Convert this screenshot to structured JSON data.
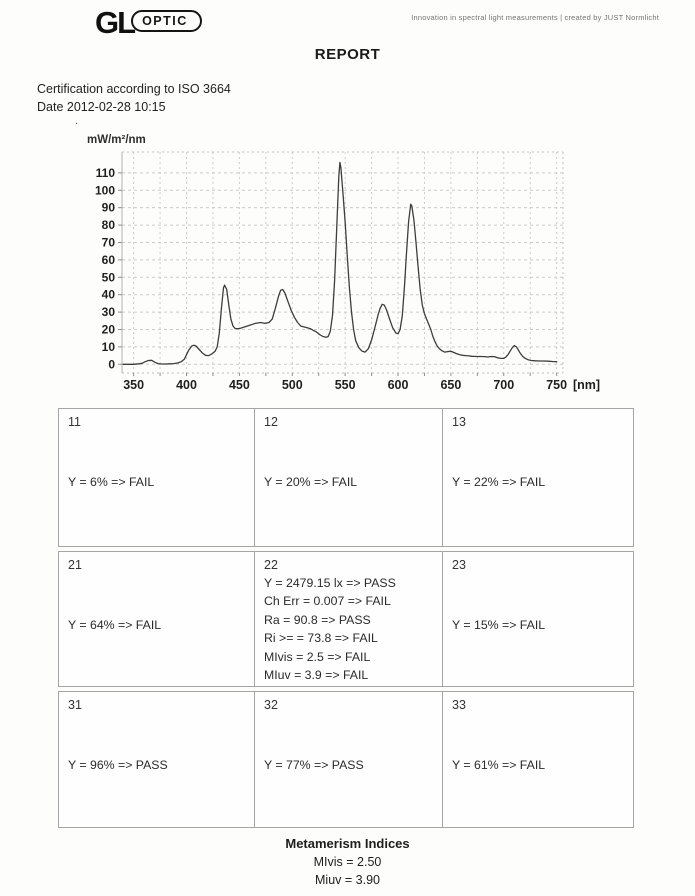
{
  "header": {
    "logo_gl": "GL",
    "logo_optic": "OPTIC",
    "tagline": "Innovation in spectral light measurements  |  created by JUST Normlicht",
    "title": "REPORT"
  },
  "certification": {
    "line1": "Certification according to ISO 3664",
    "line2": "Date 2012-02-28 10:15"
  },
  "stray_mark": ".",
  "chart_data": {
    "type": "line",
    "title": "",
    "ylabel": "mW/m²/nm",
    "x_unit_label": "[nm]",
    "xlabel": "",
    "x_ticks": [
      350,
      400,
      450,
      500,
      550,
      600,
      650,
      700,
      750
    ],
    "y_ticks": [
      0,
      10,
      20,
      30,
      40,
      50,
      60,
      70,
      80,
      90,
      100,
      110
    ],
    "xlim": [
      339,
      756
    ],
    "ylim": [
      -5,
      122
    ],
    "grid": true,
    "grid_color": "#cccccc",
    "line_color": "#3d3d3d",
    "points": [
      [
        340,
        0
      ],
      [
        345,
        0
      ],
      [
        350,
        0
      ],
      [
        355,
        0.3
      ],
      [
        358,
        0.6
      ],
      [
        361,
        1.5
      ],
      [
        364,
        2.2
      ],
      [
        367,
        2.3
      ],
      [
        370,
        1.2
      ],
      [
        373,
        0.4
      ],
      [
        376,
        0.2
      ],
      [
        380,
        0.2
      ],
      [
        384,
        0.3
      ],
      [
        388,
        0.4
      ],
      [
        392,
        0.8
      ],
      [
        395,
        1.5
      ],
      [
        398,
        3
      ],
      [
        400,
        5.5
      ],
      [
        402,
        8
      ],
      [
        405,
        10.5
      ],
      [
        407,
        11
      ],
      [
        409,
        10.5
      ],
      [
        412,
        8.5
      ],
      [
        415,
        6.5
      ],
      [
        418,
        5.2
      ],
      [
        421,
        5
      ],
      [
        424,
        6
      ],
      [
        427,
        7.5
      ],
      [
        429,
        10
      ],
      [
        431,
        18
      ],
      [
        433,
        32
      ],
      [
        435,
        44
      ],
      [
        436,
        45.5
      ],
      [
        438,
        43
      ],
      [
        440,
        34
      ],
      [
        442,
        26
      ],
      [
        444,
        22
      ],
      [
        446,
        20.5
      ],
      [
        450,
        20.5
      ],
      [
        455,
        21.5
      ],
      [
        460,
        22.5
      ],
      [
        465,
        23.5
      ],
      [
        470,
        24
      ],
      [
        474,
        23.5
      ],
      [
        478,
        24
      ],
      [
        481,
        26
      ],
      [
        484,
        32
      ],
      [
        487,
        39
      ],
      [
        489,
        42.5
      ],
      [
        491,
        43
      ],
      [
        493,
        41
      ],
      [
        496,
        36
      ],
      [
        499,
        31
      ],
      [
        502,
        27
      ],
      [
        505,
        24
      ],
      [
        508,
        22
      ],
      [
        511,
        21.5
      ],
      [
        514,
        21
      ],
      [
        517,
        20.5
      ],
      [
        520,
        19.5
      ],
      [
        523,
        18.5
      ],
      [
        526,
        17
      ],
      [
        529,
        16
      ],
      [
        532,
        15.5
      ],
      [
        534,
        16
      ],
      [
        536,
        19
      ],
      [
        538,
        28
      ],
      [
        540,
        48
      ],
      [
        542,
        78
      ],
      [
        544,
        108
      ],
      [
        545,
        116
      ],
      [
        546,
        113
      ],
      [
        548,
        98
      ],
      [
        550,
        82
      ],
      [
        552,
        62
      ],
      [
        554,
        44
      ],
      [
        556,
        30
      ],
      [
        558,
        20
      ],
      [
        560,
        13.5
      ],
      [
        563,
        9.5
      ],
      [
        566,
        7.5
      ],
      [
        569,
        7
      ],
      [
        572,
        9
      ],
      [
        575,
        14
      ],
      [
        578,
        21
      ],
      [
        581,
        28
      ],
      [
        583,
        32
      ],
      [
        585,
        34.5
      ],
      [
        587,
        34
      ],
      [
        589,
        31.5
      ],
      [
        592,
        26
      ],
      [
        595,
        21
      ],
      [
        598,
        18
      ],
      [
        600,
        17.5
      ],
      [
        602,
        20
      ],
      [
        604,
        28
      ],
      [
        606,
        44
      ],
      [
        608,
        64
      ],
      [
        610,
        82
      ],
      [
        612,
        92
      ],
      [
        613,
        91
      ],
      [
        615,
        83
      ],
      [
        617,
        70
      ],
      [
        619,
        56
      ],
      [
        621,
        43
      ],
      [
        623,
        34
      ],
      [
        625,
        29
      ],
      [
        627,
        26
      ],
      [
        629,
        23
      ],
      [
        631,
        20
      ],
      [
        633,
        16
      ],
      [
        635,
        13
      ],
      [
        637,
        10.5
      ],
      [
        639,
        9
      ],
      [
        641,
        8
      ],
      [
        644,
        7
      ],
      [
        647,
        7.3
      ],
      [
        650,
        7.5
      ],
      [
        652,
        7
      ],
      [
        655,
        6.2
      ],
      [
        658,
        5.6
      ],
      [
        661,
        5.2
      ],
      [
        664,
        5
      ],
      [
        667,
        4.8
      ],
      [
        670,
        4.6
      ],
      [
        674,
        4.5
      ],
      [
        678,
        4.5
      ],
      [
        682,
        4.4
      ],
      [
        685,
        4.2
      ],
      [
        688,
        4.5
      ],
      [
        691,
        4.4
      ],
      [
        694,
        3.8
      ],
      [
        697,
        3.4
      ],
      [
        700,
        3.4
      ],
      [
        702,
        4.2
      ],
      [
        704,
        5.5
      ],
      [
        706,
        7.5
      ],
      [
        708,
        9.5
      ],
      [
        710,
        10.8
      ],
      [
        712,
        10
      ],
      [
        714,
        8
      ],
      [
        716,
        6
      ],
      [
        718,
        4.5
      ],
      [
        720,
        3.5
      ],
      [
        723,
        2.6
      ],
      [
        726,
        2.2
      ],
      [
        730,
        2
      ],
      [
        734,
        1.9
      ],
      [
        738,
        1.9
      ],
      [
        742,
        1.8
      ],
      [
        746,
        1.6
      ],
      [
        750,
        1.5
      ]
    ]
  },
  "grid_table": {
    "cells": [
      {
        "id": "11",
        "lines": [
          "Y = 6% => FAIL"
        ]
      },
      {
        "id": "12",
        "lines": [
          "Y = 20% => FAIL"
        ]
      },
      {
        "id": "13",
        "lines": [
          "Y = 22% => FAIL"
        ]
      },
      {
        "id": "21",
        "lines": [
          "Y = 64% => FAIL"
        ]
      },
      {
        "id": "22",
        "lines": [
          "Y = 2479.15 lx => PASS",
          "Ch Err = 0.007 => FAIL",
          "Ra = 90.8 => PASS",
          "Ri >= = 73.8 => FAIL",
          "MIvis = 2.5 => FAIL",
          "MIuv = 3.9 => FAIL"
        ]
      },
      {
        "id": "23",
        "lines": [
          "Y = 15% => FAIL"
        ]
      },
      {
        "id": "31",
        "lines": [
          "Y = 96% => PASS"
        ]
      },
      {
        "id": "32",
        "lines": [
          "Y = 77% => PASS"
        ]
      },
      {
        "id": "33",
        "lines": [
          "Y = 61% => FAIL"
        ]
      }
    ]
  },
  "footer": {
    "title": "Metamerism Indices",
    "mivis": "MIvis = 2.50",
    "miuv": "Miuv = 3.90"
  }
}
